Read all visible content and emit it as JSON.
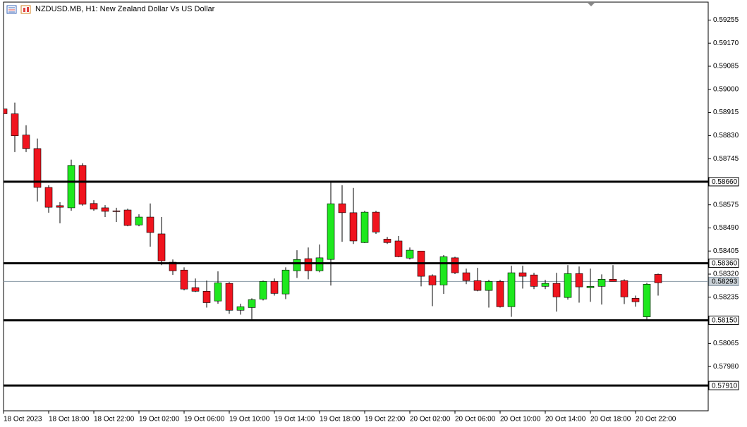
{
  "chart_data": {
    "type": "candlestick",
    "title": "NZDUSD.MB, H1:  New Zealand Dollar Vs US Dollar",
    "categories": [
      "18 Oct 2023",
      null,
      null,
      null,
      "18 Oct 18:00",
      null,
      null,
      null,
      "18 Oct 22:00",
      null,
      null,
      null,
      "19 Oct 02:00",
      null,
      null,
      null,
      "19 Oct 06:00",
      null,
      null,
      null,
      "19 Oct 10:00",
      null,
      null,
      null,
      "19 Oct 14:00",
      null,
      null,
      null,
      "19 Oct 18:00",
      null,
      null,
      null,
      "19 Oct 22:00",
      null,
      null,
      null,
      "20 Oct 02:00",
      null,
      null,
      null,
      "20 Oct 06:00",
      null,
      null,
      null,
      "20 Oct 10:00",
      null,
      null,
      null,
      "20 Oct 14:00",
      null,
      null,
      null,
      "20 Oct 18:00",
      null,
      null,
      null,
      "20 Oct 22:00",
      null,
      null
    ],
    "open": [
      0.58928,
      0.5891,
      0.58832,
      0.58782,
      0.58639,
      0.58572,
      0.58564,
      0.5872,
      0.5858,
      0.58564,
      0.58553,
      0.58556,
      0.58501,
      0.5853,
      0.58468,
      0.58364,
      0.58335,
      0.5827,
      0.58257,
      0.58221,
      0.58286,
      0.58187,
      0.58197,
      0.58228,
      0.58293,
      0.58247,
      0.58332,
      0.58377,
      0.58332,
      0.58374,
      0.58579,
      0.58546,
      0.58436,
      0.58548,
      0.58449,
      0.58442,
      0.58379,
      0.58405,
      0.58314,
      0.5828,
      0.5838,
      0.58325,
      0.58296,
      0.5826,
      0.58293,
      0.582,
      0.58325,
      0.58317,
      0.58275,
      0.58286,
      0.58234,
      0.58322,
      0.5827,
      0.58275,
      0.58301,
      0.58296,
      0.58231,
      0.58163,
      0.58319
    ],
    "high": [
      0.5893,
      0.58951,
      0.58868,
      0.58819,
      0.58647,
      0.58585,
      0.58741,
      0.58728,
      0.58592,
      0.58574,
      0.58564,
      0.58561,
      0.5854,
      0.5858,
      0.5853,
      0.58374,
      0.58345,
      0.58304,
      0.58296,
      0.5833,
      0.58291,
      0.58211,
      0.58231,
      0.58296,
      0.58304,
      0.58345,
      0.58408,
      0.58418,
      0.58429,
      0.58663,
      0.58647,
      0.58637,
      0.58553,
      0.58553,
      0.58457,
      0.5846,
      0.58418,
      0.58405,
      0.58319,
      0.5839,
      0.58384,
      0.5834,
      0.58343,
      0.58299,
      0.58299,
      0.58351,
      0.58351,
      0.58325,
      0.58299,
      0.58325,
      0.58353,
      0.58348,
      0.5834,
      0.58319,
      0.58353,
      0.58301,
      0.58241,
      0.58288,
      0.58322
    ],
    "low": [
      0.58904,
      0.58769,
      0.58769,
      0.58587,
      0.58546,
      0.58507,
      0.58553,
      0.58572,
      0.58553,
      0.5853,
      0.58512,
      0.58496,
      0.58496,
      0.58421,
      0.58353,
      0.58317,
      0.5826,
      0.58254,
      0.58197,
      0.58211,
      0.58174,
      0.58171,
      0.58153,
      0.58223,
      0.58241,
      0.58228,
      0.58306,
      0.58301,
      0.58327,
      0.58278,
      0.58439,
      0.58431,
      0.58434,
      0.58468,
      0.58431,
      0.58382,
      0.58374,
      0.58275,
      0.58202,
      0.58247,
      0.5832,
      0.58283,
      0.58257,
      0.58197,
      0.58197,
      0.58163,
      0.58267,
      0.58265,
      0.58265,
      0.58182,
      0.58226,
      0.58215,
      0.58218,
      0.58208,
      0.58293,
      0.5821,
      0.582,
      0.58153,
      0.58241
    ],
    "close": [
      0.5891,
      0.58829,
      0.58782,
      0.58639,
      0.58566,
      0.58566,
      0.5872,
      0.58577,
      0.58559,
      0.58551,
      0.5855,
      0.58499,
      0.5853,
      0.58473,
      0.58369,
      0.58332,
      0.58265,
      0.58257,
      0.58215,
      0.58288,
      0.58187,
      0.582,
      0.58226,
      0.58293,
      0.58249,
      0.58335,
      0.58374,
      0.58332,
      0.5838,
      0.58579,
      0.58546,
      0.58442,
      0.58548,
      0.58475,
      0.58436,
      0.58384,
      0.58408,
      0.58312,
      0.5828,
      0.58384,
      0.58325,
      0.58296,
      0.5826,
      0.58293,
      0.582,
      0.58325,
      0.58312,
      0.58275,
      0.58286,
      0.58236,
      0.58322,
      0.58273,
      0.58275,
      0.58301,
      0.58293,
      0.58236,
      0.58218,
      0.58283,
      0.58288
    ],
    "up_color": "#1ee81e",
    "down_color": "#f0141e",
    "ylim": [
      0.57817,
      0.59321
    ],
    "yticks": [
      0.59255,
      {
        "value": 0.5917,
        "label": "0.59170"
      },
      0.59085,
      {
        "value": 0.59,
        "label": "0.59000"
      },
      0.58915,
      {
        "value": 0.5883,
        "label": "0.58830"
      },
      0.58745,
      0.58575,
      {
        "value": 0.5849,
        "label": "0.58490"
      },
      0.58405,
      {
        "value": 0.5832,
        "label": "0.58320"
      },
      0.58235,
      0.58065,
      {
        "value": 0.5798,
        "label": "0.57980"
      }
    ],
    "levels": [
      {
        "value": 0.5866,
        "label": "0.58660"
      },
      {
        "value": 0.5836,
        "label": "0.58360"
      },
      {
        "value": 0.5815,
        "label": "0.58150"
      },
      {
        "value": 0.5791,
        "label": "0.57910"
      }
    ],
    "current_price": {
      "value": 0.58293,
      "label": "0.58293"
    }
  }
}
